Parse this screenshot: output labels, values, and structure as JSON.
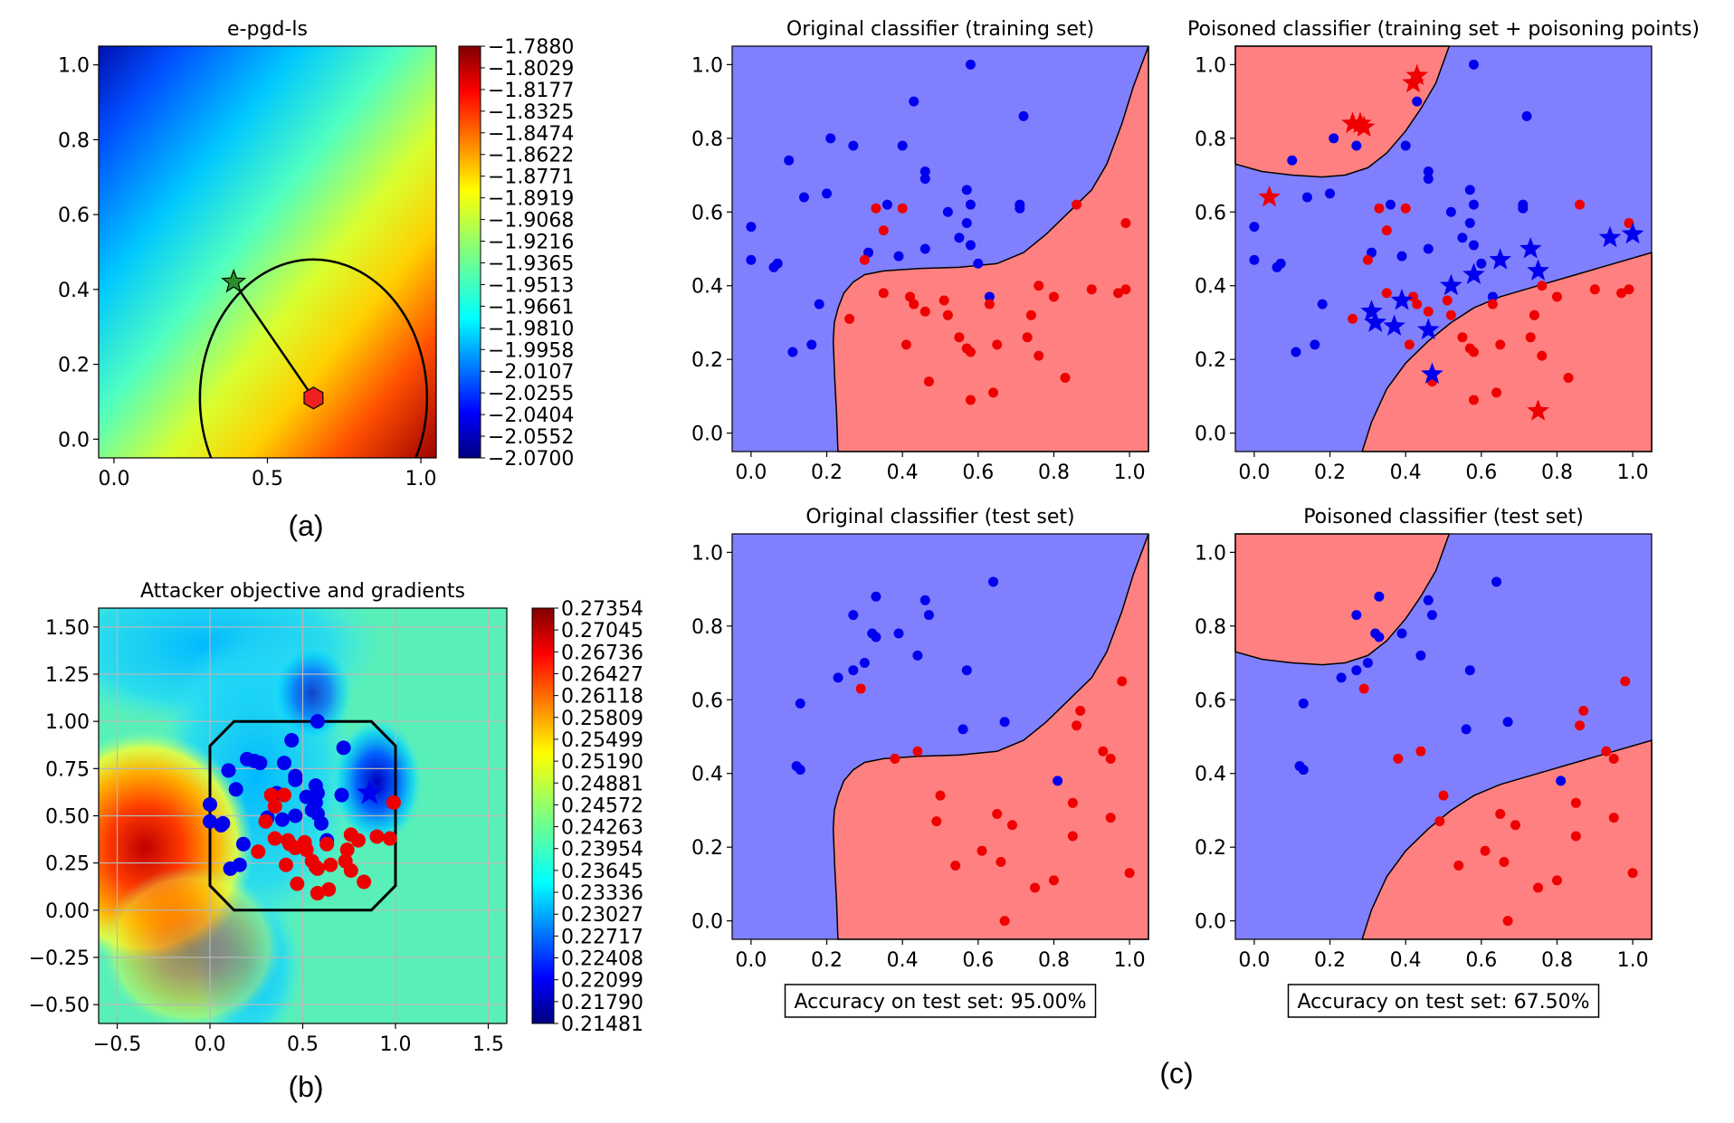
{
  "colors": {
    "blue_region": "#8080ff",
    "red_region": "#ff8080",
    "blue_point": "#0000ee",
    "red_point": "#ee0000",
    "star_green": "#2a8f2a",
    "hexagon": "#ee2020"
  },
  "panel_labels": [
    "(a)",
    "(b)",
    "(c)"
  ],
  "chart_data": [
    {
      "id": "a",
      "type": "heatmap",
      "title": "e-pgd-ls",
      "xlim": [
        -0.05,
        1.05
      ],
      "ylim": [
        -0.05,
        1.05
      ],
      "xticks": [
        "0.0",
        "0.5",
        "1.0"
      ],
      "yticks": [
        "0.0",
        "0.2",
        "0.4",
        "0.6",
        "0.8",
        "1.0"
      ],
      "colormap": "jet",
      "colorbar_ticks": [
        "−1.7880",
        "−1.8029",
        "−1.8177",
        "−1.8325",
        "−1.8474",
        "−1.8622",
        "−1.8771",
        "−1.8919",
        "−1.9068",
        "−1.9216",
        "−1.9365",
        "−1.9513",
        "−1.9661",
        "−1.9810",
        "−1.9958",
        "−2.0107",
        "−2.0255",
        "−2.0404",
        "−2.0552",
        "−2.0700"
      ],
      "circle": {
        "center": [
          0.65,
          0.11
        ],
        "radius": 0.37
      },
      "path": [
        [
          0.39,
          0.42
        ],
        [
          0.65,
          0.11
        ]
      ],
      "start_marker": {
        "x": 0.39,
        "y": 0.42,
        "shape": "star"
      },
      "end_marker": {
        "x": 0.65,
        "y": 0.11,
        "shape": "hexagon"
      }
    },
    {
      "id": "b",
      "type": "heatmap",
      "title": "Attacker objective and gradients",
      "xlim": [
        -0.6,
        1.6
      ],
      "ylim": [
        -0.6,
        1.6
      ],
      "xticks": [
        "−0.5",
        "0.0",
        "0.5",
        "1.0",
        "1.5"
      ],
      "yticks": [
        "−0.50",
        "−0.25",
        "0.00",
        "0.25",
        "0.50",
        "0.75",
        "1.00",
        "1.25",
        "1.50"
      ],
      "grid": true,
      "colormap": "jet",
      "colorbar_ticks": [
        "0.27354",
        "0.27045",
        "0.26736",
        "0.26427",
        "0.26118",
        "0.25809",
        "0.25499",
        "0.25190",
        "0.24881",
        "0.24572",
        "0.24263",
        "0.23954",
        "0.23645",
        "0.23336",
        "0.23027",
        "0.22717",
        "0.22408",
        "0.22099",
        "0.21790",
        "0.21481"
      ],
      "box_octagon": [
        [
          0.13,
          0.0
        ],
        [
          0.87,
          0.0
        ],
        [
          1.0,
          0.13
        ],
        [
          1.0,
          0.87
        ],
        [
          0.87,
          1.0
        ],
        [
          0.13,
          1.0
        ],
        [
          0.0,
          0.87
        ],
        [
          0.0,
          0.13
        ]
      ],
      "star": {
        "x": 0.86,
        "y": 0.62,
        "color": "blue"
      }
    },
    {
      "id": "c1",
      "type": "scatter",
      "title": "Original classifier (training set)",
      "xlim": [
        -0.05,
        1.05
      ],
      "ylim": [
        -0.05,
        1.05
      ],
      "xticks": [
        "0.0",
        "0.2",
        "0.4",
        "0.6",
        "0.8",
        "1.0"
      ],
      "yticks": [
        "0.0",
        "0.2",
        "0.4",
        "0.6",
        "0.8",
        "1.0"
      ],
      "accuracy": "",
      "boundary": "original",
      "point_set": "train"
    },
    {
      "id": "c2",
      "type": "scatter",
      "title": "Poisoned classifier (training set + poisoning points)",
      "xlim": [
        -0.05,
        1.05
      ],
      "ylim": [
        -0.05,
        1.05
      ],
      "xticks": [
        "0.0",
        "0.2",
        "0.4",
        "0.6",
        "0.8",
        "1.0"
      ],
      "yticks": [
        "0.0",
        "0.2",
        "0.4",
        "0.6",
        "0.8",
        "1.0"
      ],
      "accuracy": "",
      "boundary": "poisoned",
      "point_set": "train",
      "poison_red": [
        [
          0.43,
          0.97
        ],
        [
          0.42,
          0.95
        ],
        [
          0.28,
          0.84
        ],
        [
          0.29,
          0.83
        ],
        [
          0.26,
          0.84
        ],
        [
          0.04,
          0.64
        ],
        [
          0.75,
          0.06
        ]
      ],
      "poison_blue": [
        [
          0.31,
          0.33
        ],
        [
          0.32,
          0.3
        ],
        [
          0.37,
          0.29
        ],
        [
          0.39,
          0.36
        ],
        [
          0.46,
          0.28
        ],
        [
          0.47,
          0.16
        ],
        [
          0.52,
          0.4
        ],
        [
          0.58,
          0.43
        ],
        [
          0.65,
          0.47
        ],
        [
          0.73,
          0.5
        ],
        [
          0.75,
          0.44
        ],
        [
          0.94,
          0.53
        ],
        [
          1.0,
          0.54
        ]
      ]
    },
    {
      "id": "c3",
      "type": "scatter",
      "title": "Original classifier (test set)",
      "xlim": [
        -0.05,
        1.05
      ],
      "ylim": [
        -0.05,
        1.05
      ],
      "xticks": [
        "0.0",
        "0.2",
        "0.4",
        "0.6",
        "0.8",
        "1.0"
      ],
      "yticks": [
        "0.0",
        "0.2",
        "0.4",
        "0.6",
        "0.8",
        "1.0"
      ],
      "accuracy": "Accuracy on test set: 95.00%",
      "boundary": "original",
      "point_set": "test"
    },
    {
      "id": "c4",
      "type": "scatter",
      "title": "Poisoned classifier (test set)",
      "xlim": [
        -0.05,
        1.05
      ],
      "ylim": [
        -0.05,
        1.05
      ],
      "xticks": [
        "0.0",
        "0.2",
        "0.4",
        "0.6",
        "0.8",
        "1.0"
      ],
      "yticks": [
        "0.0",
        "0.2",
        "0.4",
        "0.6",
        "0.8",
        "1.0"
      ],
      "accuracy": "Accuracy on test set: 67.50%",
      "boundary": "poisoned",
      "point_set": "test"
    }
  ],
  "points": {
    "train_blue": [
      [
        0.0,
        0.56
      ],
      [
        0.0,
        0.47
      ],
      [
        0.06,
        0.45
      ],
      [
        0.07,
        0.46
      ],
      [
        0.1,
        0.74
      ],
      [
        0.11,
        0.22
      ],
      [
        0.14,
        0.64
      ],
      [
        0.16,
        0.24
      ],
      [
        0.18,
        0.35
      ],
      [
        0.2,
        0.65
      ],
      [
        0.21,
        0.8
      ],
      [
        0.27,
        0.78
      ],
      [
        0.31,
        0.49
      ],
      [
        0.36,
        0.62
      ],
      [
        0.4,
        0.78
      ],
      [
        0.43,
        0.9
      ],
      [
        0.46,
        0.71
      ],
      [
        0.46,
        0.69
      ],
      [
        0.46,
        0.5
      ],
      [
        0.52,
        0.6
      ],
      [
        0.55,
        0.53
      ],
      [
        0.57,
        0.57
      ],
      [
        0.58,
        0.62
      ],
      [
        0.58,
        0.51
      ],
      [
        0.57,
        0.66
      ],
      [
        0.58,
        1.0
      ],
      [
        0.6,
        0.46
      ],
      [
        0.63,
        0.37
      ],
      [
        0.72,
        0.86
      ],
      [
        0.71,
        0.61
      ],
      [
        0.71,
        0.62
      ],
      [
        0.39,
        0.48
      ]
    ],
    "train_red": [
      [
        0.26,
        0.31
      ],
      [
        0.3,
        0.47
      ],
      [
        0.33,
        0.61
      ],
      [
        0.35,
        0.55
      ],
      [
        0.35,
        0.38
      ],
      [
        0.4,
        0.61
      ],
      [
        0.41,
        0.24
      ],
      [
        0.42,
        0.37
      ],
      [
        0.43,
        0.35
      ],
      [
        0.46,
        0.33
      ],
      [
        0.47,
        0.14
      ],
      [
        0.51,
        0.36
      ],
      [
        0.52,
        0.32
      ],
      [
        0.55,
        0.26
      ],
      [
        0.57,
        0.23
      ],
      [
        0.58,
        0.09
      ],
      [
        0.58,
        0.22
      ],
      [
        0.63,
        0.35
      ],
      [
        0.64,
        0.11
      ],
      [
        0.65,
        0.24
      ],
      [
        0.73,
        0.26
      ],
      [
        0.74,
        0.32
      ],
      [
        0.76,
        0.4
      ],
      [
        0.76,
        0.21
      ],
      [
        0.8,
        0.37
      ],
      [
        0.83,
        0.15
      ],
      [
        0.86,
        0.62
      ],
      [
        0.9,
        0.39
      ],
      [
        0.97,
        0.38
      ],
      [
        0.99,
        0.39
      ],
      [
        0.99,
        0.57
      ]
    ],
    "test_blue": [
      [
        0.12,
        0.42
      ],
      [
        0.13,
        0.41
      ],
      [
        0.13,
        0.59
      ],
      [
        0.23,
        0.66
      ],
      [
        0.27,
        0.68
      ],
      [
        0.27,
        0.83
      ],
      [
        0.3,
        0.7
      ],
      [
        0.32,
        0.78
      ],
      [
        0.33,
        0.77
      ],
      [
        0.33,
        0.88
      ],
      [
        0.39,
        0.78
      ],
      [
        0.44,
        0.72
      ],
      [
        0.46,
        0.87
      ],
      [
        0.47,
        0.83
      ],
      [
        0.56,
        0.52
      ],
      [
        0.57,
        0.68
      ],
      [
        0.64,
        0.92
      ],
      [
        0.67,
        0.54
      ],
      [
        0.81,
        0.38
      ]
    ],
    "test_red": [
      [
        0.29,
        0.63
      ],
      [
        0.38,
        0.44
      ],
      [
        0.44,
        0.46
      ],
      [
        0.49,
        0.27
      ],
      [
        0.5,
        0.34
      ],
      [
        0.54,
        0.15
      ],
      [
        0.61,
        0.19
      ],
      [
        0.65,
        0.29
      ],
      [
        0.66,
        0.16
      ],
      [
        0.67,
        0.0
      ],
      [
        0.69,
        0.26
      ],
      [
        0.75,
        0.09
      ],
      [
        0.8,
        0.11
      ],
      [
        0.85,
        0.23
      ],
      [
        0.85,
        0.32
      ],
      [
        0.86,
        0.53
      ],
      [
        0.87,
        0.57
      ],
      [
        0.93,
        0.46
      ],
      [
        0.95,
        0.44
      ],
      [
        0.95,
        0.28
      ],
      [
        0.98,
        0.65
      ],
      [
        1.0,
        0.13
      ]
    ],
    "b_blue": [
      [
        0.0,
        0.56
      ],
      [
        0.0,
        0.47
      ],
      [
        0.06,
        0.45
      ],
      [
        0.07,
        0.46
      ],
      [
        0.1,
        0.74
      ],
      [
        0.11,
        0.22
      ],
      [
        0.14,
        0.64
      ],
      [
        0.16,
        0.24
      ],
      [
        0.18,
        0.35
      ],
      [
        0.2,
        0.8
      ],
      [
        0.24,
        0.79
      ],
      [
        0.27,
        0.78
      ],
      [
        0.31,
        0.49
      ],
      [
        0.36,
        0.62
      ],
      [
        0.4,
        0.78
      ],
      [
        0.44,
        0.9
      ],
      [
        0.46,
        0.71
      ],
      [
        0.46,
        0.69
      ],
      [
        0.46,
        0.5
      ],
      [
        0.52,
        0.6
      ],
      [
        0.55,
        0.53
      ],
      [
        0.57,
        0.57
      ],
      [
        0.58,
        0.62
      ],
      [
        0.58,
        0.51
      ],
      [
        0.57,
        0.66
      ],
      [
        0.58,
        1.0
      ],
      [
        0.6,
        0.46
      ],
      [
        0.63,
        0.37
      ],
      [
        0.72,
        0.86
      ],
      [
        0.71,
        0.61
      ],
      [
        0.39,
        0.48
      ]
    ],
    "b_red": [
      [
        0.26,
        0.31
      ],
      [
        0.3,
        0.47
      ],
      [
        0.33,
        0.61
      ],
      [
        0.35,
        0.55
      ],
      [
        0.35,
        0.38
      ],
      [
        0.4,
        0.61
      ],
      [
        0.41,
        0.24
      ],
      [
        0.42,
        0.37
      ],
      [
        0.43,
        0.35
      ],
      [
        0.46,
        0.33
      ],
      [
        0.47,
        0.14
      ],
      [
        0.51,
        0.36
      ],
      [
        0.52,
        0.32
      ],
      [
        0.55,
        0.26
      ],
      [
        0.57,
        0.23
      ],
      [
        0.58,
        0.09
      ],
      [
        0.58,
        0.22
      ],
      [
        0.63,
        0.35
      ],
      [
        0.64,
        0.11
      ],
      [
        0.65,
        0.24
      ],
      [
        0.73,
        0.26
      ],
      [
        0.74,
        0.32
      ],
      [
        0.76,
        0.4
      ],
      [
        0.76,
        0.21
      ],
      [
        0.8,
        0.37
      ],
      [
        0.83,
        0.15
      ],
      [
        0.9,
        0.39
      ],
      [
        0.97,
        0.38
      ],
      [
        0.99,
        0.57
      ]
    ]
  }
}
